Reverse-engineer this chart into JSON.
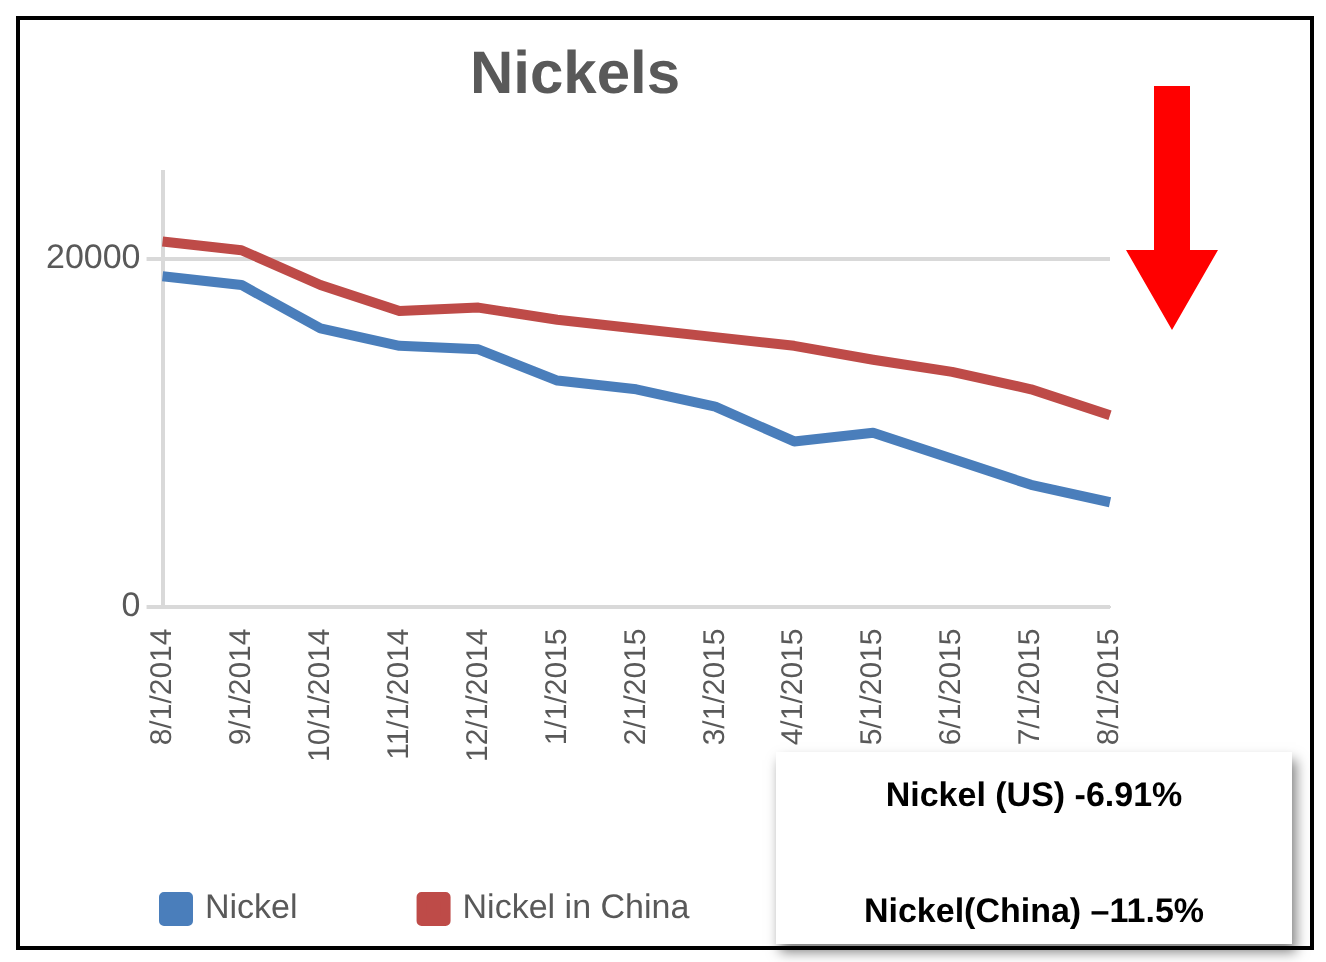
{
  "chart_data": {
    "type": "line",
    "title": "Nickels",
    "categories": [
      "8/1/2014",
      "9/1/2014",
      "10/1/2014",
      "11/1/2014",
      "12/1/2014",
      "1/1/2015",
      "2/1/2015",
      "3/1/2015",
      "4/1/2015",
      "5/1/2015",
      "6/1/2015",
      "7/1/2015",
      "8/1/2015"
    ],
    "series": [
      {
        "name": "Nickel",
        "color": "#4a7ebb",
        "values": [
          19000,
          18500,
          16000,
          15000,
          14800,
          13000,
          12500,
          11500,
          9500,
          10000,
          8500,
          7000,
          6000
        ]
      },
      {
        "name": "Nickel in China",
        "color": "#be4b48",
        "values": [
          21000,
          20500,
          18500,
          17000,
          17200,
          16500,
          16000,
          15500,
          15000,
          14200,
          13500,
          12500,
          11000
        ]
      }
    ],
    "ylim": [
      0,
      25000
    ],
    "yticks": [
      0,
      20000
    ],
    "grid": "y",
    "legend": "bottom left",
    "marker": "none",
    "line_style": "solid",
    "annotations": [
      "Nickel (US)  -6.91%",
      "Nickel(China) –11.5%"
    ]
  }
}
